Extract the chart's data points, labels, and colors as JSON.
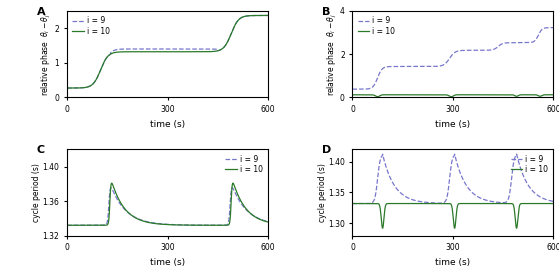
{
  "panel_labels": [
    "A",
    "B",
    "C",
    "D"
  ],
  "xlabel": "time (s)",
  "legend_labels": [
    "i = 9",
    "i = 10"
  ],
  "blue_color": "#7777cc",
  "green_color": "#2a7a2a",
  "xlim": [
    0,
    600
  ],
  "xticks": [
    0,
    300,
    600
  ],
  "panel_A_ylim": [
    0,
    2.5
  ],
  "panel_A_yticks": [
    0,
    1,
    2
  ],
  "panel_B_ylim": [
    0,
    4
  ],
  "panel_B_yticks": [
    0,
    2,
    4
  ],
  "panel_C_ylim": [
    1.32,
    1.42
  ],
  "panel_C_yticks": [
    1.32,
    1.36,
    1.4
  ],
  "panel_D_ylim": [
    1.28,
    1.42
  ],
  "panel_D_yticks": [
    1.3,
    1.35,
    1.4
  ]
}
